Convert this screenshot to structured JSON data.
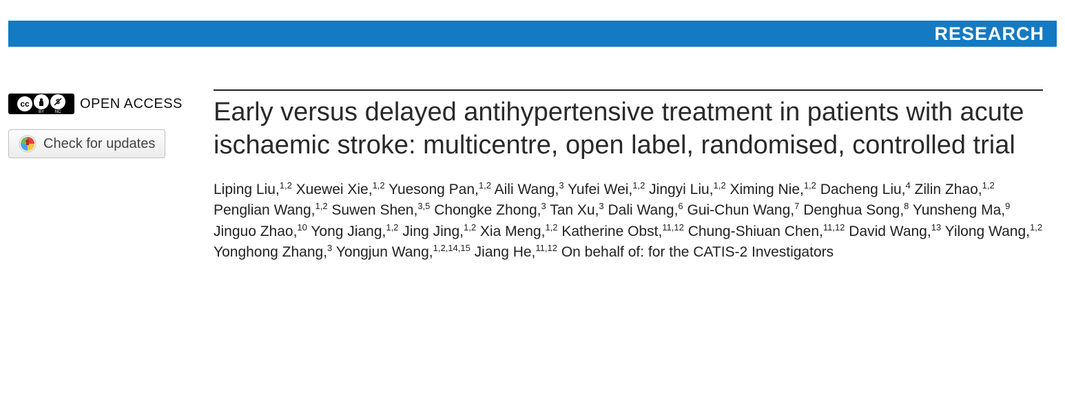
{
  "banner": {
    "label": "RESEARCH",
    "bg_color": "#147ac3",
    "text_color": "#ffffff"
  },
  "sidebar": {
    "open_access_label": "OPEN ACCESS",
    "cc_main": "cc",
    "cc_by": "BY",
    "cc_nc": "NC",
    "updates_label": "Check for updates"
  },
  "article": {
    "title": "Early versus delayed antihypertensive treatment in patients with acute ischaemic stroke: multicentre, open label, randomised, controlled trial",
    "title_color": "#2a2a2a",
    "authors": [
      {
        "name": "Liping Liu",
        "aff": "1,2"
      },
      {
        "name": "Xuewei Xie",
        "aff": "1,2"
      },
      {
        "name": "Yuesong Pan",
        "aff": "1,2"
      },
      {
        "name": "Aili Wang",
        "aff": "3"
      },
      {
        "name": "Yufei Wei",
        "aff": "1,2"
      },
      {
        "name": "Jingyi Liu",
        "aff": "1,2"
      },
      {
        "name": "Ximing Nie",
        "aff": "1,2"
      },
      {
        "name": "Dacheng Liu",
        "aff": "4"
      },
      {
        "name": "Zilin Zhao",
        "aff": "1,2"
      },
      {
        "name": "Penglian Wang",
        "aff": "1,2"
      },
      {
        "name": "Suwen Shen",
        "aff": "3,5"
      },
      {
        "name": "Chongke Zhong",
        "aff": "3"
      },
      {
        "name": "Tan Xu",
        "aff": "3"
      },
      {
        "name": "Dali Wang",
        "aff": "6"
      },
      {
        "name": "Gui-Chun Wang",
        "aff": "7"
      },
      {
        "name": "Denghua Song",
        "aff": "8"
      },
      {
        "name": "Yunsheng Ma",
        "aff": "9"
      },
      {
        "name": "Jinguo Zhao",
        "aff": "10"
      },
      {
        "name": "Yong Jiang",
        "aff": "1,2"
      },
      {
        "name": "Jing Jing",
        "aff": "1,2"
      },
      {
        "name": "Xia Meng",
        "aff": "1,2"
      },
      {
        "name": "Katherine Obst",
        "aff": "11,12"
      },
      {
        "name": "Chung-Shiuan Chen",
        "aff": "11,12"
      },
      {
        "name": "David Wang",
        "aff": "13"
      },
      {
        "name": "Yilong Wang",
        "aff": "1,2"
      },
      {
        "name": "Yonghong Zhang",
        "aff": "3"
      },
      {
        "name": "Yongjun Wang",
        "aff": "1,2,14,15"
      },
      {
        "name": "Jiang He",
        "aff": "11,12"
      }
    ],
    "on_behalf": "On behalf of: for the CATIS-2 Investigators"
  }
}
